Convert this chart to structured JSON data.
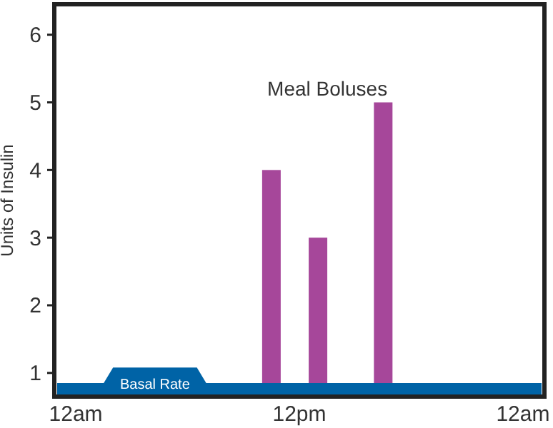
{
  "chart_data": {
    "type": "bar",
    "ylabel": "Units of Insulin",
    "categories": [
      null,
      null,
      "12am",
      null,
      null,
      null,
      null,
      null,
      null,
      null,
      null,
      null,
      null,
      null,
      null,
      null,
      null,
      null,
      null,
      null,
      null,
      null,
      null,
      null,
      null,
      null,
      "12pm",
      null,
      null,
      null,
      null,
      null,
      null,
      null,
      null,
      null,
      null,
      null,
      null,
      null,
      null,
      null,
      null,
      null,
      null,
      null,
      null,
      null,
      null,
      null,
      "12am",
      null,
      null
    ],
    "ylim": [
      0.65,
      6.45
    ],
    "yticks": [
      1,
      2,
      3,
      4,
      5,
      6
    ],
    "grid": false,
    "series": [
      {
        "type": "area",
        "name": "Basal Rate",
        "color": "#0063a6",
        "values": [
          0.85,
          0.85,
          0.85,
          0.85,
          0.85,
          0.85,
          1.08,
          1.08,
          1.08,
          1.08,
          1.08,
          1.08,
          1.08,
          1.08,
          1.08,
          1.08,
          0.85,
          0.85,
          0.85,
          0.85,
          0.85,
          0.85,
          0.85,
          0.85,
          0.85,
          0.85,
          0.85,
          0.85,
          0.85,
          0.85,
          0.85,
          0.85,
          0.85,
          0.85,
          0.85,
          0.85,
          0.85,
          0.85,
          0.85,
          0.85,
          0.85,
          0.85,
          0.85,
          0.85,
          0.85,
          0.85,
          0.85,
          0.85,
          0.85,
          0.85,
          0.85,
          0.85,
          0.85
        ]
      },
      {
        "name": "Meal Boluses",
        "color": "#a6479a",
        "values": [
          null,
          null,
          null,
          null,
          null,
          null,
          null,
          null,
          null,
          null,
          null,
          null,
          null,
          null,
          null,
          null,
          null,
          null,
          null,
          null,
          null,
          null,
          null,
          4,
          null,
          null,
          null,
          null,
          3,
          null,
          null,
          null,
          null,
          null,
          null,
          5,
          null,
          null,
          null,
          null,
          null,
          null,
          null,
          null,
          null,
          null,
          null,
          null,
          null,
          null,
          null,
          null,
          null
        ]
      }
    ]
  }
}
